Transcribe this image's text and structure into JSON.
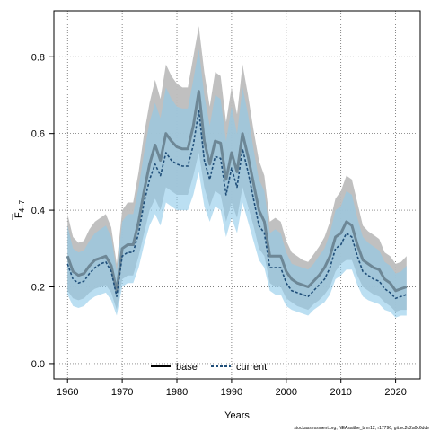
{
  "chart_data": {
    "type": "line",
    "xlabel": "Years",
    "ylabel_main": "F",
    "ylabel_sub": "4–7",
    "xlim": [
      1957.5,
      2024.5
    ],
    "ylim": [
      -0.04,
      0.92
    ],
    "xticks": [
      1960,
      1970,
      1980,
      1990,
      2000,
      2010,
      2020
    ],
    "yticks": [
      0.0,
      0.2,
      0.4,
      0.6,
      0.8
    ],
    "grid": true,
    "legend_position": "bottom-center",
    "footer": "stockassessment.org, NEAsaithe_bmr12, r17796, git:ec2c2a0c6dde",
    "x": [
      1960,
      1961,
      1962,
      1963,
      1964,
      1965,
      1966,
      1967,
      1968,
      1969,
      1970,
      1971,
      1972,
      1973,
      1974,
      1975,
      1976,
      1977,
      1978,
      1979,
      1980,
      1981,
      1982,
      1983,
      1984,
      1985,
      1986,
      1987,
      1988,
      1989,
      1990,
      1991,
      1992,
      1993,
      1994,
      1995,
      1996,
      1997,
      1998,
      1999,
      2000,
      2001,
      2002,
      2003,
      2004,
      2005,
      2006,
      2007,
      2008,
      2009,
      2010,
      2011,
      2012,
      2013,
      2014,
      2015,
      2016,
      2017,
      2018,
      2019,
      2020,
      2021,
      2022
    ],
    "series": [
      {
        "name": "base",
        "color": "#222222",
        "band_color": "#bdbdbd",
        "values": [
          0.28,
          0.24,
          0.23,
          0.235,
          0.255,
          0.27,
          0.275,
          0.28,
          0.255,
          0.19,
          0.3,
          0.31,
          0.31,
          0.37,
          0.45,
          0.52,
          0.57,
          0.53,
          0.6,
          0.58,
          0.565,
          0.56,
          0.56,
          0.62,
          0.71,
          0.58,
          0.52,
          0.58,
          0.575,
          0.48,
          0.55,
          0.5,
          0.6,
          0.54,
          0.47,
          0.4,
          0.37,
          0.28,
          0.28,
          0.28,
          0.24,
          0.22,
          0.21,
          0.205,
          0.2,
          0.215,
          0.23,
          0.25,
          0.28,
          0.33,
          0.34,
          0.37,
          0.36,
          0.31,
          0.27,
          0.26,
          0.25,
          0.245,
          0.22,
          0.21,
          0.19,
          0.195,
          0.2
        ],
        "lower": [
          0.19,
          0.17,
          0.165,
          0.17,
          0.185,
          0.195,
          0.2,
          0.205,
          0.185,
          0.14,
          0.22,
          0.23,
          0.23,
          0.28,
          0.34,
          0.4,
          0.43,
          0.4,
          0.46,
          0.45,
          0.44,
          0.44,
          0.44,
          0.49,
          0.55,
          0.46,
          0.41,
          0.45,
          0.44,
          0.37,
          0.42,
          0.38,
          0.46,
          0.41,
          0.36,
          0.3,
          0.28,
          0.21,
          0.2,
          0.2,
          0.17,
          0.16,
          0.15,
          0.145,
          0.14,
          0.155,
          0.165,
          0.18,
          0.2,
          0.24,
          0.26,
          0.27,
          0.27,
          0.23,
          0.2,
          0.19,
          0.18,
          0.175,
          0.16,
          0.15,
          0.135,
          0.14,
          0.14
        ],
        "upper": [
          0.39,
          0.33,
          0.315,
          0.32,
          0.35,
          0.37,
          0.38,
          0.39,
          0.355,
          0.26,
          0.4,
          0.42,
          0.42,
          0.5,
          0.6,
          0.68,
          0.74,
          0.69,
          0.78,
          0.75,
          0.73,
          0.72,
          0.72,
          0.8,
          0.88,
          0.76,
          0.67,
          0.76,
          0.75,
          0.63,
          0.72,
          0.65,
          0.78,
          0.7,
          0.61,
          0.53,
          0.49,
          0.37,
          0.38,
          0.37,
          0.32,
          0.29,
          0.28,
          0.27,
          0.265,
          0.285,
          0.305,
          0.33,
          0.37,
          0.43,
          0.45,
          0.49,
          0.48,
          0.42,
          0.36,
          0.345,
          0.335,
          0.325,
          0.29,
          0.28,
          0.26,
          0.265,
          0.28
        ]
      },
      {
        "name": "current",
        "color": "#1f4e79",
        "band_color": "#8ec9ea",
        "values": [
          0.26,
          0.22,
          0.21,
          0.215,
          0.235,
          0.25,
          0.26,
          0.265,
          0.24,
          0.175,
          0.28,
          0.29,
          0.29,
          0.34,
          0.42,
          0.48,
          0.52,
          0.49,
          0.55,
          0.53,
          0.52,
          0.515,
          0.515,
          0.57,
          0.66,
          0.53,
          0.48,
          0.54,
          0.535,
          0.44,
          0.51,
          0.46,
          0.56,
          0.5,
          0.43,
          0.36,
          0.34,
          0.25,
          0.25,
          0.25,
          0.21,
          0.19,
          0.185,
          0.18,
          0.175,
          0.19,
          0.205,
          0.22,
          0.25,
          0.3,
          0.31,
          0.34,
          0.33,
          0.28,
          0.24,
          0.23,
          0.22,
          0.215,
          0.195,
          0.185,
          0.17,
          0.175,
          0.18
        ],
        "lower": [
          0.18,
          0.15,
          0.145,
          0.15,
          0.165,
          0.175,
          0.18,
          0.185,
          0.165,
          0.125,
          0.2,
          0.21,
          0.21,
          0.25,
          0.31,
          0.36,
          0.39,
          0.36,
          0.42,
          0.41,
          0.4,
          0.4,
          0.4,
          0.44,
          0.5,
          0.41,
          0.37,
          0.41,
          0.4,
          0.33,
          0.38,
          0.34,
          0.42,
          0.37,
          0.32,
          0.27,
          0.25,
          0.19,
          0.18,
          0.18,
          0.15,
          0.14,
          0.135,
          0.13,
          0.125,
          0.14,
          0.15,
          0.16,
          0.18,
          0.22,
          0.23,
          0.245,
          0.245,
          0.205,
          0.175,
          0.165,
          0.16,
          0.155,
          0.14,
          0.135,
          0.12,
          0.125,
          0.125
        ],
        "upper": [
          0.36,
          0.3,
          0.29,
          0.295,
          0.32,
          0.34,
          0.35,
          0.36,
          0.33,
          0.24,
          0.37,
          0.39,
          0.39,
          0.46,
          0.55,
          0.63,
          0.68,
          0.64,
          0.72,
          0.69,
          0.67,
          0.665,
          0.665,
          0.74,
          0.82,
          0.7,
          0.62,
          0.7,
          0.69,
          0.58,
          0.67,
          0.6,
          0.72,
          0.65,
          0.56,
          0.48,
          0.45,
          0.34,
          0.35,
          0.34,
          0.29,
          0.26,
          0.255,
          0.25,
          0.245,
          0.26,
          0.28,
          0.3,
          0.34,
          0.4,
          0.41,
          0.45,
          0.44,
          0.38,
          0.33,
          0.315,
          0.305,
          0.295,
          0.265,
          0.255,
          0.235,
          0.24,
          0.255
        ]
      }
    ]
  }
}
